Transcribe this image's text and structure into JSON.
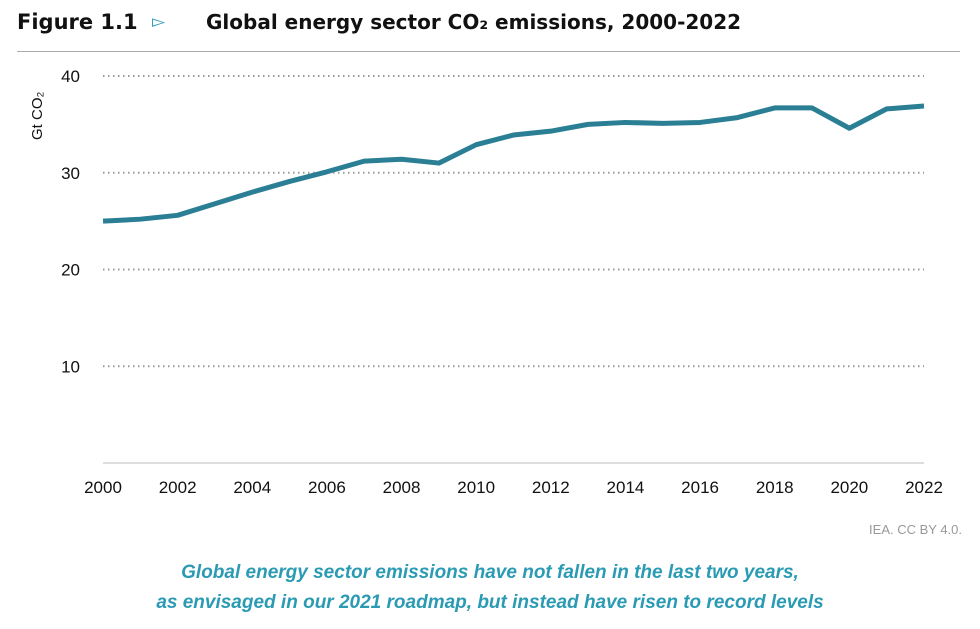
{
  "figure_label": "Figure 1.1",
  "title": "Global energy sector CO₂ emissions, 2000-2022",
  "credit": "IEA. CC BY 4.0.",
  "caption": [
    "Global energy sector emissions have not fallen in the last two years,",
    "as envisaged in our 2021 roadmap, but instead have risen to record levels"
  ],
  "colors": {
    "line": "#2b7f94",
    "arrow": "#2b9bb4",
    "caption": "#2b9bb4"
  },
  "chart_data": {
    "type": "line",
    "title": "Global energy sector CO₂ emissions, 2000-2022",
    "ylabel": "Gt CO₂",
    "xlabel": "",
    "xlim": [
      2000,
      2022
    ],
    "ylim": [
      0,
      40
    ],
    "yticks": [
      10,
      20,
      30,
      40
    ],
    "xticks": [
      2000,
      2002,
      2004,
      2006,
      2008,
      2010,
      2012,
      2014,
      2016,
      2018,
      2020,
      2022
    ],
    "grid": "horizontal dotted",
    "x": [
      2000,
      2001,
      2002,
      2003,
      2004,
      2005,
      2006,
      2007,
      2008,
      2009,
      2010,
      2011,
      2012,
      2013,
      2014,
      2015,
      2016,
      2017,
      2018,
      2019,
      2020,
      2021,
      2022
    ],
    "values": [
      25.0,
      25.2,
      25.6,
      26.8,
      28.0,
      29.1,
      30.1,
      31.2,
      31.4,
      31.0,
      32.9,
      33.9,
      34.3,
      35.0,
      35.2,
      35.1,
      35.2,
      35.7,
      36.7,
      36.7,
      34.6,
      36.6,
      36.9
    ]
  }
}
